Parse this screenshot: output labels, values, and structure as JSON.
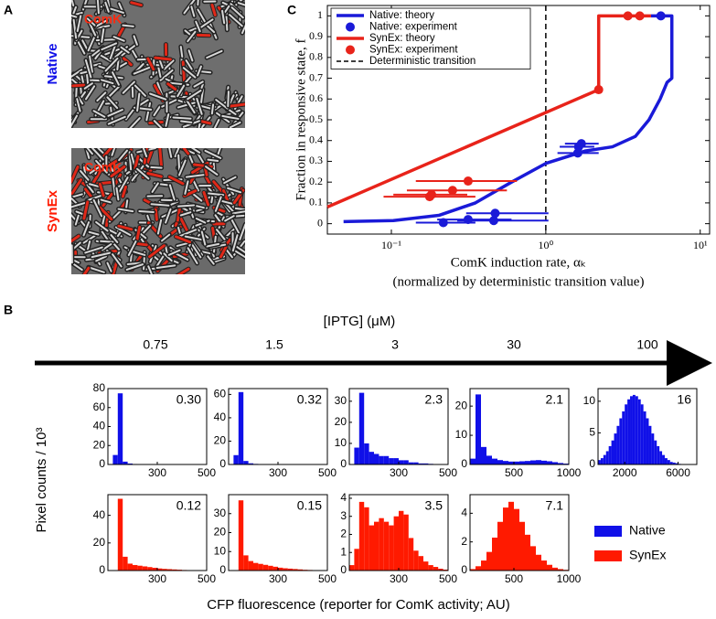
{
  "panel_a": {
    "label": "A",
    "top": {
      "strain": "Native",
      "marker": "ComK"
    },
    "bottom": {
      "strain": "SynEx",
      "marker": "ComK"
    }
  },
  "panel_b": {
    "label": "B",
    "axis_title": "[IPTG] (μM)",
    "iptg": [
      0.75,
      1.5,
      3,
      30,
      100
    ],
    "y_label": "Pixel counts / 10³",
    "x_label": "CFP fluorescence (reporter for ComK activity; AU)",
    "legend": [
      {
        "name": "Native",
        "color": "#1010e8"
      },
      {
        "name": "SynEx",
        "color": "#ff1a00"
      }
    ]
  },
  "panel_c": {
    "label": "C"
  },
  "chart_data": [
    {
      "type": "line",
      "xscale": "log",
      "x_label": "ComK induction rate, αₖ",
      "x_label_2": "(normalized by deterministic transition value)",
      "y_label": "Fraction in responsive state, f",
      "xlim": [
        0.0385,
        11.5
      ],
      "xticks": [
        {
          "value": 0.1,
          "label": "10⁻¹"
        },
        {
          "value": 1,
          "label": "10⁰"
        },
        {
          "value": 10,
          "label": "10¹"
        }
      ],
      "ylim": [
        -0.05,
        1.05
      ],
      "yticks": [
        0,
        0.1,
        0.2,
        0.3,
        0.4,
        0.5,
        0.6,
        0.7,
        0.8,
        0.9,
        1
      ],
      "legend": "upper left",
      "series": [
        {
          "name": "Native: theory",
          "mode": "line",
          "color": "#1a1ad8",
          "x": [
            0.049,
            0.103,
            0.203,
            0.35,
            0.6,
            1,
            1.8,
            2.7,
            3.8,
            4.66,
            5.5,
            6.1,
            6.55,
            6.55,
            4.8
          ],
          "values": [
            0.01,
            0.015,
            0.04,
            0.1,
            0.2,
            0.29,
            0.35,
            0.37,
            0.42,
            0.5,
            0.6,
            0.68,
            0.7,
            1,
            1
          ]
        },
        {
          "name": "Native: experiment",
          "mode": "points",
          "color": "#1a1ad8",
          "x": [
            0.217,
            0.314,
            0.46,
            0.47,
            1.61,
            1.63,
            1.7,
            5.56
          ],
          "values": [
            0.005,
            0.02,
            0.015,
            0.05,
            0.34,
            0.37,
            0.385,
            1
          ],
          "x_low": [
            0.144,
            0.198,
            0.267,
            0.305,
            1.19,
            1.23,
            1.33,
            null
          ],
          "x_high": [
            0.35,
            0.6,
            1.04,
            1.04,
            2.2,
            2.06,
            2.2,
            null
          ]
        },
        {
          "name": "SynEx: theory",
          "mode": "line",
          "color": "#e8231a",
          "x": [
            0.0385,
            2.2,
            2.2,
            4.8
          ],
          "values": [
            0.08,
            0.645,
            1,
            1
          ]
        },
        {
          "name": "SynEx: experiment",
          "mode": "points",
          "color": "#e8231a",
          "x": [
            0.177,
            0.182,
            0.249,
            0.314,
            2.2,
            3.4,
            4.06
          ],
          "values": [
            0.13,
            0.14,
            0.16,
            0.205,
            0.645,
            1,
            1
          ],
          "x_low": [
            0.089,
            0.103,
            0.126,
            0.144,
            null,
            null,
            null
          ],
          "x_high": [
            0.35,
            0.31,
            0.56,
            0.65,
            null,
            null,
            null
          ]
        }
      ],
      "reference_line": {
        "name": "Deterministic transition",
        "x": 1,
        "color": "#000000",
        "dashed": true
      }
    },
    {
      "type": "histogram",
      "color": "#1010e8",
      "annotation": "0.30",
      "bins": [
        100,
        120,
        140,
        160,
        180,
        200,
        220,
        240,
        260,
        280,
        300,
        320,
        340,
        360,
        380,
        400,
        420,
        440,
        460,
        480,
        500
      ],
      "values": [
        0,
        10,
        75,
        3,
        1,
        0.5,
        0.3,
        0.2,
        0.1,
        0,
        0,
        0,
        0,
        0,
        0,
        0,
        0,
        0,
        0,
        0
      ],
      "xlim": [
        100,
        500
      ],
      "xticks": [
        300,
        500
      ],
      "ylim": [
        0,
        80
      ],
      "yticks": [
        0,
        20,
        40,
        60,
        80
      ]
    },
    {
      "type": "histogram",
      "color": "#1010e8",
      "annotation": "0.32",
      "bins": [
        100,
        120,
        140,
        160,
        180,
        200,
        220,
        240,
        260,
        280,
        300,
        320,
        340,
        360,
        380,
        400,
        420,
        440,
        460,
        480,
        500
      ],
      "values": [
        0,
        8,
        62,
        3,
        1,
        0.5,
        0.3,
        0.2,
        0.1,
        0,
        0,
        0,
        0,
        0,
        0,
        0,
        0,
        0,
        0,
        0
      ],
      "xlim": [
        100,
        500
      ],
      "xticks": [
        300,
        500
      ],
      "ylim": [
        0,
        65
      ],
      "yticks": [
        0,
        20,
        40,
        60
      ]
    },
    {
      "type": "histogram",
      "color": "#1010e8",
      "annotation": "2.3",
      "bins": [
        100,
        120,
        140,
        160,
        180,
        200,
        220,
        240,
        260,
        280,
        300,
        320,
        340,
        360,
        380,
        400,
        420,
        440,
        460,
        480,
        500
      ],
      "values": [
        0,
        8,
        34,
        10,
        6,
        5,
        4,
        4,
        3,
        3,
        2,
        2,
        1,
        1,
        0.5,
        0.5,
        0.3,
        0.2,
        0.1,
        0.1
      ],
      "xlim": [
        100,
        500
      ],
      "xticks": [
        300,
        500
      ],
      "ylim": [
        0,
        36
      ],
      "yticks": [
        0,
        10,
        20,
        30
      ]
    },
    {
      "type": "histogram",
      "color": "#1010e8",
      "annotation": "2.1",
      "bins": [
        100,
        150,
        200,
        250,
        300,
        350,
        400,
        450,
        500,
        550,
        600,
        650,
        700,
        750,
        800,
        850,
        900,
        950,
        1000
      ],
      "values": [
        2,
        24,
        6,
        3,
        2,
        1.5,
        1.2,
        1,
        1,
        1.1,
        1.2,
        1.4,
        1.5,
        1.3,
        1.1,
        0.8,
        0.5,
        0.3
      ],
      "xlim": [
        100,
        1000
      ],
      "xticks": [
        500,
        1000
      ],
      "ylim": [
        0,
        26
      ],
      "yticks": [
        0,
        10,
        20
      ]
    },
    {
      "type": "histogram",
      "color": "#1010e8",
      "annotation": "16",
      "bins": [
        0,
        200,
        400,
        600,
        800,
        1000,
        1200,
        1400,
        1600,
        1800,
        2000,
        2200,
        2400,
        2600,
        2800,
        3000,
        3200,
        3400,
        3600,
        3800,
        4000,
        4200,
        4400,
        4600,
        4800,
        5000,
        5200,
        5400,
        5600,
        5800,
        6000,
        6200,
        6400,
        6600,
        6800,
        7000,
        7200,
        7400
      ],
      "values": [
        0.7,
        1.0,
        1.5,
        2.1,
        2.9,
        3.8,
        4.9,
        6.1,
        7.3,
        8.4,
        9.5,
        10.3,
        10.8,
        11,
        10.8,
        10.3,
        9.5,
        8.4,
        7.3,
        6.1,
        4.9,
        3.8,
        2.9,
        2.1,
        1.5,
        1.0,
        0.7,
        0.4,
        0.3,
        0.2,
        0.1,
        0.05,
        0,
        0,
        0,
        0,
        0
      ],
      "xlim": [
        0,
        7400
      ],
      "xticks": [
        2000,
        6000
      ],
      "ylim": [
        0,
        12
      ],
      "yticks": [
        0,
        5,
        10
      ]
    },
    {
      "type": "histogram",
      "color": "#ff1a00",
      "annotation": "0.12",
      "bins": [
        100,
        120,
        140,
        160,
        180,
        200,
        220,
        240,
        260,
        280,
        300,
        320,
        340,
        360,
        380,
        400,
        420,
        440,
        460,
        480,
        500
      ],
      "values": [
        0,
        0,
        52,
        10,
        5,
        4,
        3.5,
        3,
        2.5,
        2,
        1.5,
        1.2,
        1,
        0.8,
        0.6,
        0.4,
        0.3,
        0.2,
        0.1,
        0.1
      ],
      "xlim": [
        100,
        500
      ],
      "xticks": [
        300,
        500
      ],
      "ylim": [
        0,
        55
      ],
      "yticks": [
        0,
        20,
        40
      ]
    },
    {
      "type": "histogram",
      "color": "#ff1a00",
      "annotation": "0.15",
      "bins": [
        100,
        120,
        140,
        160,
        180,
        200,
        220,
        240,
        260,
        280,
        300,
        320,
        340,
        360,
        380,
        400,
        420,
        440,
        460,
        480,
        500
      ],
      "values": [
        0,
        0,
        37,
        8,
        5,
        4,
        3.5,
        3,
        2.5,
        2,
        1.5,
        1.2,
        1,
        0.8,
        0.6,
        0.4,
        0.3,
        0.2,
        0.1,
        0.1
      ],
      "xlim": [
        100,
        500
      ],
      "xticks": [
        300,
        500
      ],
      "ylim": [
        0,
        40
      ],
      "yticks": [
        0,
        10,
        20,
        30
      ]
    },
    {
      "type": "histogram",
      "color": "#ff1a00",
      "annotation": "3.5",
      "bins": [
        100,
        120,
        140,
        160,
        180,
        200,
        220,
        240,
        260,
        280,
        300,
        320,
        340,
        360,
        380,
        400,
        420,
        440,
        460,
        480,
        500
      ],
      "values": [
        0.3,
        1.2,
        3.8,
        3.5,
        2.5,
        2.7,
        2.9,
        2.7,
        2.5,
        3,
        3.3,
        3.1,
        1.8,
        1.1,
        0.8,
        0.5,
        0.3,
        0.2,
        0.1,
        0.05
      ],
      "xlim": [
        100,
        500
      ],
      "xticks": [
        300,
        500
      ],
      "ylim": [
        0,
        4.2
      ],
      "yticks": [
        0,
        1,
        2,
        3,
        4
      ]
    },
    {
      "type": "histogram",
      "color": "#ff1a00",
      "annotation": "7.1",
      "bins": [
        100,
        150,
        200,
        250,
        300,
        350,
        400,
        450,
        500,
        550,
        600,
        650,
        700,
        750,
        800,
        850,
        900,
        950,
        1000
      ],
      "values": [
        0.1,
        0.3,
        0.7,
        1.3,
        2.3,
        3.4,
        4.4,
        4.8,
        4.3,
        3.4,
        2.5,
        1.7,
        1.1,
        0.7,
        0.4,
        0.2,
        0.1,
        0.05
      ],
      "xlim": [
        100,
        1000
      ],
      "xticks": [
        500,
        1000
      ],
      "ylim": [
        0,
        5.3
      ],
      "yticks": [
        0,
        2,
        4
      ]
    }
  ]
}
